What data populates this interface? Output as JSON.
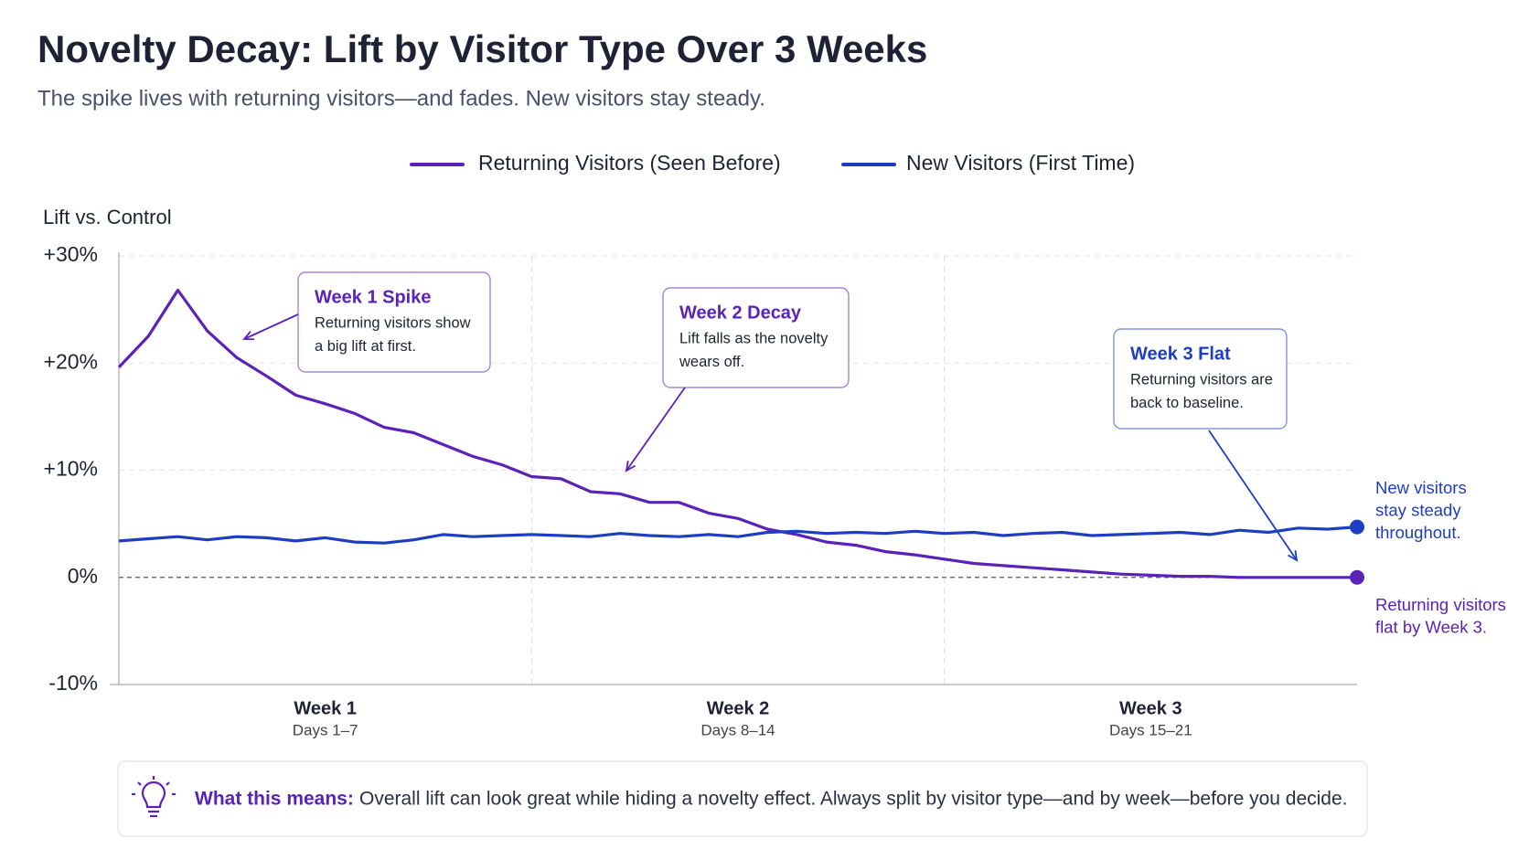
{
  "chart_data": {
    "type": "line",
    "title": "Novelty Decay: Lift by Visitor Type Over 3 Weeks",
    "subtitle": "The spike lives with returning visitors—and fades. New visitors stay steady.",
    "y_label": "Lift vs. Control",
    "x": [
      0,
      0.5,
      1,
      1.5,
      2,
      2.5,
      3,
      3.5,
      4,
      4.5,
      5,
      5.5,
      6,
      6.5,
      7,
      7.5,
      8,
      8.5,
      9,
      9.5,
      10,
      10.5,
      11,
      11.5,
      12,
      12.5,
      13,
      13.5,
      14,
      14.5,
      15,
      15.5,
      16,
      16.5,
      17,
      17.5,
      18,
      18.5,
      19,
      19.5,
      20,
      20.5,
      21
    ],
    "xlim": [
      0,
      21
    ],
    "week_dividers": [
      7,
      14
    ],
    "week_labels": [
      {
        "value": 3.5,
        "label": "Week 1",
        "days": "Days 1–7"
      },
      {
        "value": 10.5,
        "label": "Week 2",
        "days": "Days 8–14"
      },
      {
        "value": 17.5,
        "label": "Week 3",
        "days": "Days 15–21"
      }
    ],
    "ylim": [
      -10,
      30
    ],
    "yticks": [
      {
        "value": -10,
        "label": "-10%"
      },
      {
        "value": 0,
        "label": "0%"
      },
      {
        "value": 10,
        "label": "+10%"
      },
      {
        "value": 20,
        "label": "+20%"
      },
      {
        "value": 30,
        "label": "+30%"
      }
    ],
    "grid": true,
    "series": [
      {
        "name": "Returning Visitors (Seen Before)",
        "color": "#5b22b8",
        "values": [
          19.6,
          22.5,
          26.8,
          23,
          20.5,
          18.8,
          17,
          16.2,
          15.3,
          14,
          13.5,
          12.4,
          11.3,
          10.5,
          9.4,
          9.2,
          8,
          7.8,
          7,
          7,
          6,
          5.5,
          4.5,
          4,
          3.3,
          3,
          2.4,
          2.1,
          1.7,
          1.3,
          1.1,
          0.9,
          0.7,
          0.5,
          0.3,
          0.2,
          0.1,
          0.1,
          0,
          0,
          0,
          0,
          0
        ],
        "end_label": [
          "Returning visitors",
          "flat by Week 3."
        ]
      },
      {
        "name": "New Visitors (First Time)",
        "color": "#1d3ec2",
        "values": [
          3.4,
          3.6,
          3.8,
          3.5,
          3.8,
          3.7,
          3.4,
          3.7,
          3.3,
          3.2,
          3.5,
          4,
          3.8,
          3.9,
          4,
          3.9,
          3.8,
          4.1,
          3.9,
          3.8,
          4,
          3.8,
          4.2,
          4.3,
          4.1,
          4.2,
          4.1,
          4.3,
          4.1,
          4.2,
          3.9,
          4.1,
          4.2,
          3.9,
          4,
          4.1,
          4.2,
          4,
          4.4,
          4.2,
          4.6,
          4.5,
          4.7
        ],
        "end_label": [
          "New visitors",
          "stay steady",
          "throughout."
        ]
      }
    ],
    "annotations": [
      {
        "title": "Week 1 Spike",
        "text": [
          "Returning visitors show",
          "a big lift at first."
        ],
        "color": "#5b22b8"
      },
      {
        "title": "Week 2 Decay",
        "text": [
          "Lift falls as the novelty",
          "wears off."
        ],
        "color": "#5b22b8"
      },
      {
        "title": "Week 3 Flat",
        "text": [
          "Returning visitors are",
          "back to baseline."
        ],
        "color": "#1d3ec2"
      }
    ],
    "note": {
      "label": "What this means:",
      "text": "Overall lift can look great while hiding a novelty effect. Always split by visitor type—and by week—before you decide."
    }
  }
}
